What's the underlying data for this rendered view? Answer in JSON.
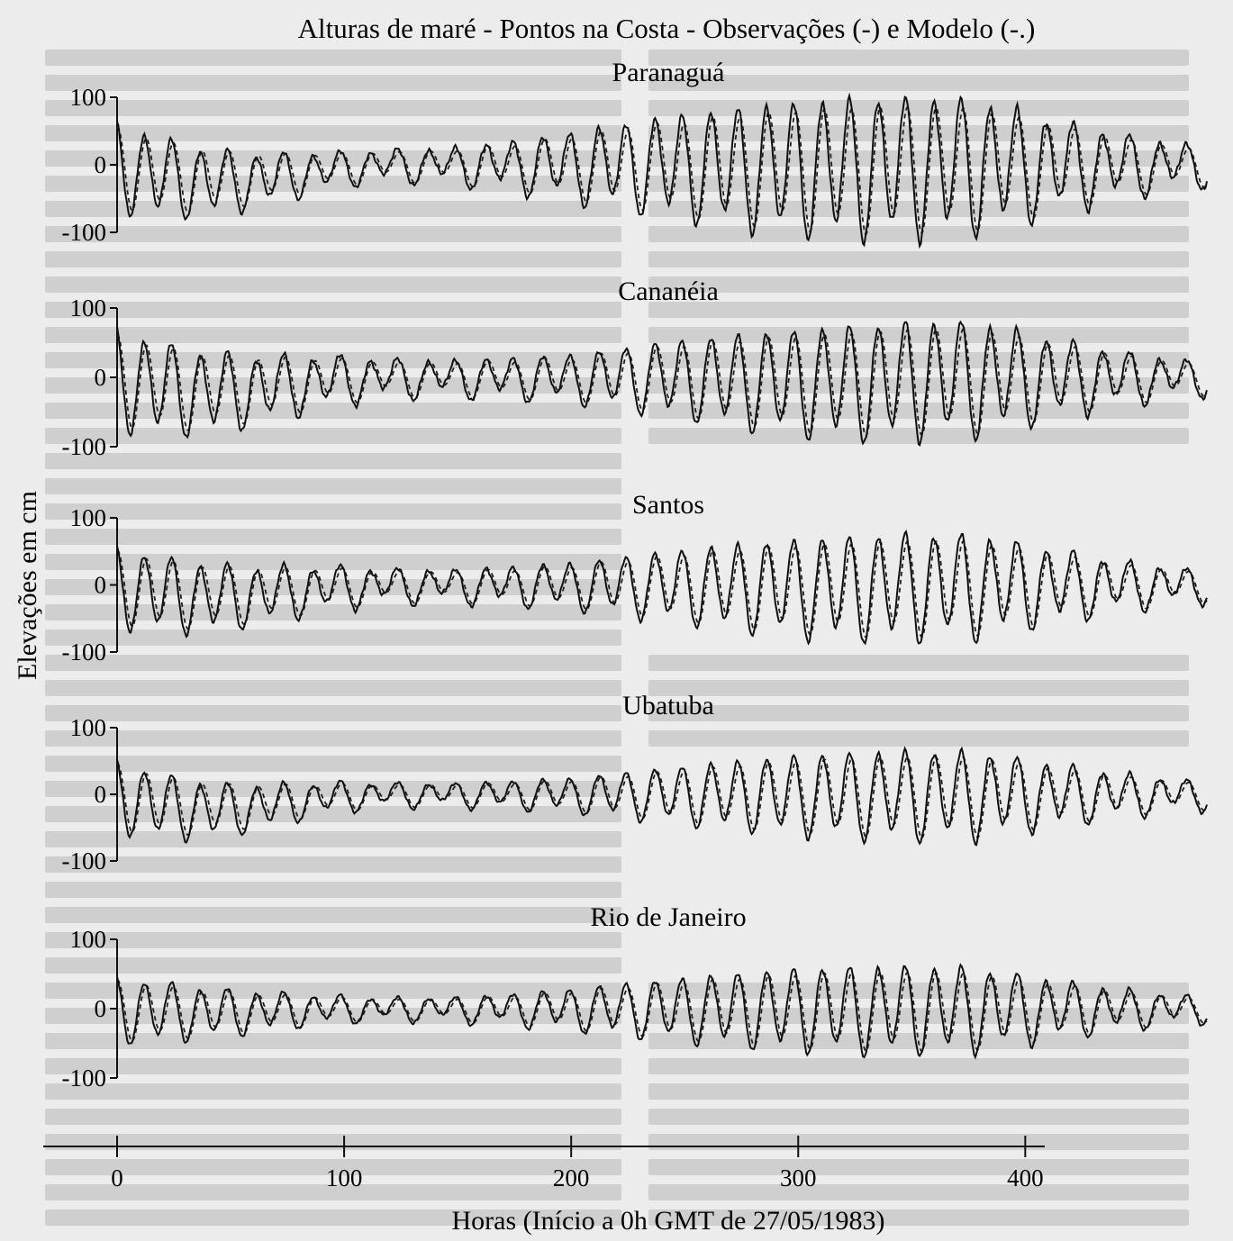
{
  "chart_data": {
    "type": "line",
    "title": "Alturas de maré - Pontos na Costa - Observações (-) e Modelo (-.)",
    "xlabel": "Horas (Início a 0h GMT de 27/05/1983)",
    "ylabel": "Elevações em cm",
    "xlim": [
      0,
      480
    ],
    "ylim": [
      -100,
      100
    ],
    "x_ticks": [
      0,
      100,
      200,
      300,
      400
    ],
    "y_ticks": [
      100,
      0,
      -100
    ],
    "x_tick_labels": [
      "0",
      "100",
      "200",
      "300",
      "400"
    ],
    "y_tick_labels": [
      "100",
      "0",
      "-100"
    ],
    "grid": false,
    "series_style": {
      "observed": "solid",
      "model": "dashed"
    },
    "panels": [
      {
        "name": "Paranaguá",
        "amplitude": [
          55,
          40,
          60,
          90,
          55
        ],
        "dip": [
          40,
          10,
          0,
          5,
          15
        ]
      },
      {
        "name": "Cananéia",
        "amplitude": [
          60,
          55,
          40,
          75,
          45
        ],
        "dip": [
          35,
          5,
          0,
          10,
          15
        ]
      },
      {
        "name": "Santos",
        "amplitude": [
          50,
          50,
          40,
          70,
          45
        ],
        "dip": [
          30,
          5,
          0,
          5,
          10
        ]
      },
      {
        "name": "Ubatuba",
        "amplitude": [
          45,
          35,
          30,
          60,
          40
        ],
        "dip": [
          40,
          5,
          0,
          0,
          5
        ]
      },
      {
        "name": "Rio de Janeiro",
        "amplitude": [
          40,
          30,
          35,
          55,
          35
        ],
        "dip": [
          10,
          0,
          0,
          0,
          5
        ]
      }
    ],
    "amplitude_at_hours": [
      0,
      100,
      200,
      380,
      480
    ]
  }
}
